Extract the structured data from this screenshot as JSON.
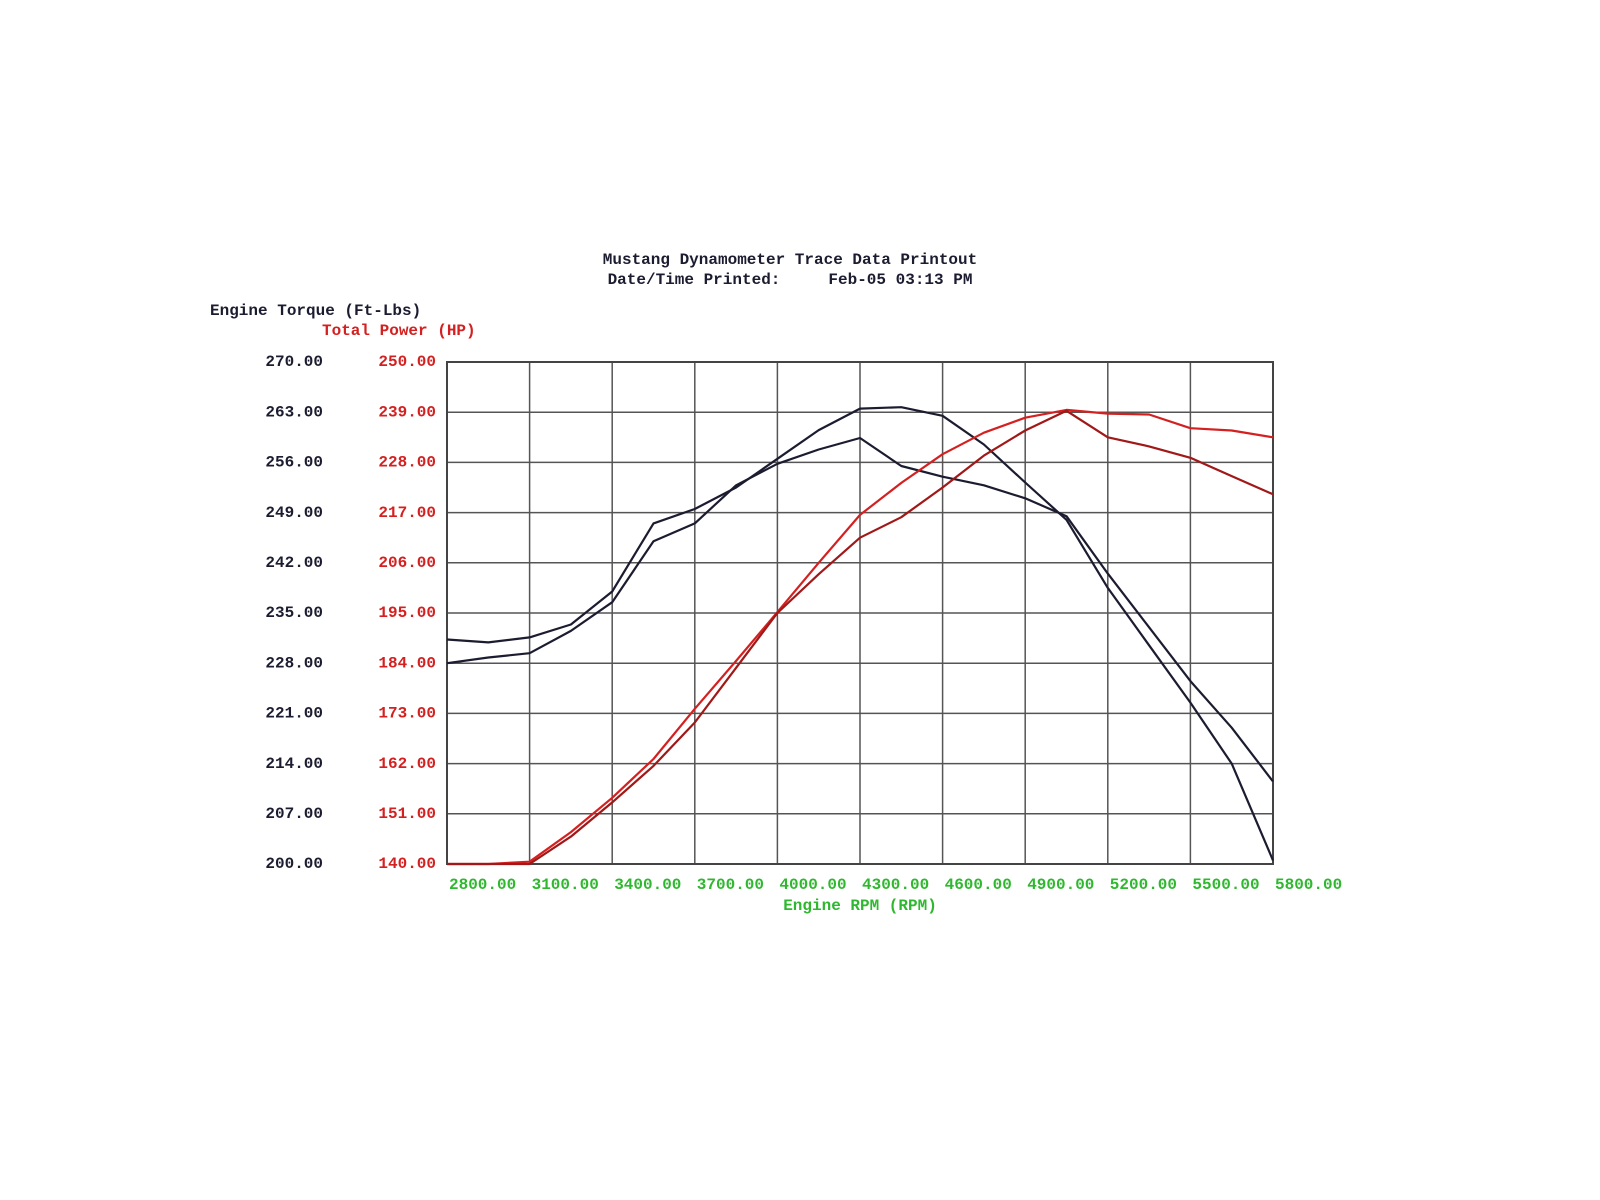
{
  "chart_data": {
    "type": "line",
    "title": "Mustang Dynamometer Trace Data Printout",
    "subtitle": "Date/Time Printed:     Feb-05 03:13 PM",
    "y_label": "Engine Torque (Ft-Lbs)",
    "y2_label": "Total Power (HP)",
    "x_label": "Engine RPM (RPM)",
    "x": [
      2800,
      2950,
      3100,
      3250,
      3400,
      3550,
      3700,
      3850,
      4000,
      4150,
      4300,
      4450,
      4600,
      4750,
      4900,
      5050,
      5200,
      5350,
      5500,
      5650,
      5800
    ],
    "series": [
      {
        "color": "#1c1c30",
        "values": [
          231.3,
          230.9,
          231.6,
          233.4,
          238.0,
          247.5,
          249.5,
          252.5,
          256.5,
          260.5,
          263.5,
          263.7,
          262.5,
          258.5,
          253.2,
          248.0,
          238.5,
          230.5,
          222.5,
          214.0,
          200.5
        ]
      },
      {
        "color": "#1c1c30",
        "values": [
          228.0,
          228.8,
          229.4,
          232.5,
          236.5,
          245.0,
          247.5,
          252.8,
          255.8,
          257.8,
          259.4,
          255.5,
          254.0,
          252.8,
          251.0,
          248.5,
          240.5,
          233.0,
          225.5,
          219.0,
          211.5
        ]
      },
      {
        "color": "#d42020",
        "axis": "y2",
        "values": [
          140,
          140,
          140.5,
          147,
          154.5,
          163,
          174,
          184.5,
          195.2,
          206,
          216.5,
          223.5,
          229.8,
          234.5,
          237.8,
          239.5,
          238.7,
          238.5,
          235.5,
          235.0,
          233.5
        ]
      },
      {
        "color": "#a01818",
        "axis": "y2",
        "values": [
          140,
          140,
          140,
          146,
          153.5,
          161.5,
          171,
          183,
          195,
          203.5,
          211.5,
          216,
          222.5,
          229.5,
          235,
          239.3,
          233.5,
          231.5,
          229,
          225,
          221
        ]
      }
    ],
    "xlim": [
      2800,
      5800
    ],
    "xticks": [
      {
        "value": 2800,
        "label": "2800.00"
      },
      {
        "value": 3100,
        "label": "3100.00"
      },
      {
        "value": 3400,
        "label": "3400.00"
      },
      {
        "value": 3700,
        "label": "3700.00"
      },
      {
        "value": 4000,
        "label": "4000.00"
      },
      {
        "value": 4300,
        "label": "4300.00"
      },
      {
        "value": 4600,
        "label": "4600.00"
      },
      {
        "value": 4900,
        "label": "4900.00"
      },
      {
        "value": 5200,
        "label": "5200.00"
      },
      {
        "value": 5500,
        "label": "5500.00"
      },
      {
        "value": 5800,
        "label": "5800.00"
      }
    ],
    "ylim": [
      200,
      270
    ],
    "yticks": [
      {
        "value": 200,
        "label": "200.00"
      },
      {
        "value": 207,
        "label": "207.00"
      },
      {
        "value": 214,
        "label": "214.00"
      },
      {
        "value": 221,
        "label": "221.00"
      },
      {
        "value": 228,
        "label": "228.00"
      },
      {
        "value": 235,
        "label": "235.00"
      },
      {
        "value": 242,
        "label": "242.00"
      },
      {
        "value": 249,
        "label": "249.00"
      },
      {
        "value": 256,
        "label": "256.00"
      },
      {
        "value": 263,
        "label": "263.00"
      },
      {
        "value": 270,
        "label": "270.00"
      }
    ],
    "y2lim": [
      140,
      250
    ],
    "y2ticks": [
      {
        "value": 140,
        "label": "140.00"
      },
      {
        "value": 151,
        "label": "151.00"
      },
      {
        "value": 162,
        "label": "162.00"
      },
      {
        "value": 173,
        "label": "173.00"
      },
      {
        "value": 184,
        "label": "184.00"
      },
      {
        "value": 195,
        "label": "195.00"
      },
      {
        "value": 206,
        "label": "206.00"
      },
      {
        "value": 217,
        "label": "217.00"
      },
      {
        "value": 228,
        "label": "228.00"
      },
      {
        "value": 239,
        "label": "239.00"
      },
      {
        "value": 250,
        "label": "250.00"
      }
    ],
    "grid": true,
    "y_color": "#1c1c30",
    "y2_color": "#d42020",
    "x_color": "#2fb82f"
  }
}
